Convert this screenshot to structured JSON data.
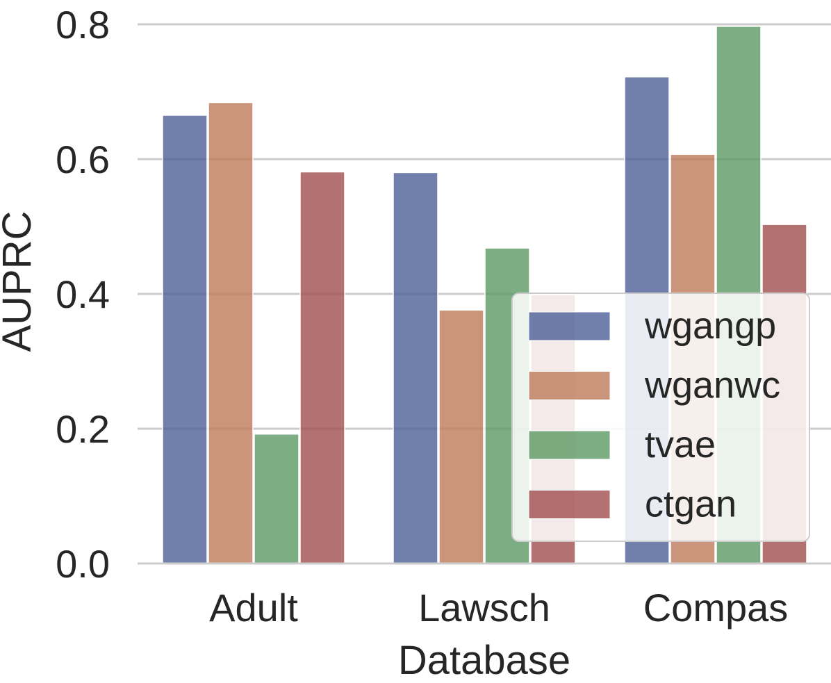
{
  "chart_data": {
    "type": "bar",
    "title": "",
    "xlabel": "Database",
    "ylabel": "AUPRC",
    "categories": [
      "Adult",
      "Lawsch",
      "Compas"
    ],
    "series": [
      {
        "name": "wgangp",
        "color": "#4c5f97",
        "values": [
          0.665,
          0.58,
          0.722
        ]
      },
      {
        "name": "wganwc",
        "color": "#be7a5a",
        "values": [
          0.684,
          0.376,
          0.607
        ]
      },
      {
        "name": "tvae",
        "color": "#5c9a64",
        "values": [
          0.192,
          0.468,
          0.797
        ]
      },
      {
        "name": "ctgan",
        "color": "#a04e4e",
        "values": [
          0.581,
          0.399,
          0.503
        ]
      }
    ],
    "ylim": [
      0,
      0.8
    ],
    "yticks": [
      "0.0",
      "0.2",
      "0.4",
      "0.6",
      "0.8"
    ],
    "ytick_values": [
      0,
      0.2,
      0.4,
      0.6,
      0.8
    ],
    "grid": true,
    "legend_position": "lower-right"
  }
}
